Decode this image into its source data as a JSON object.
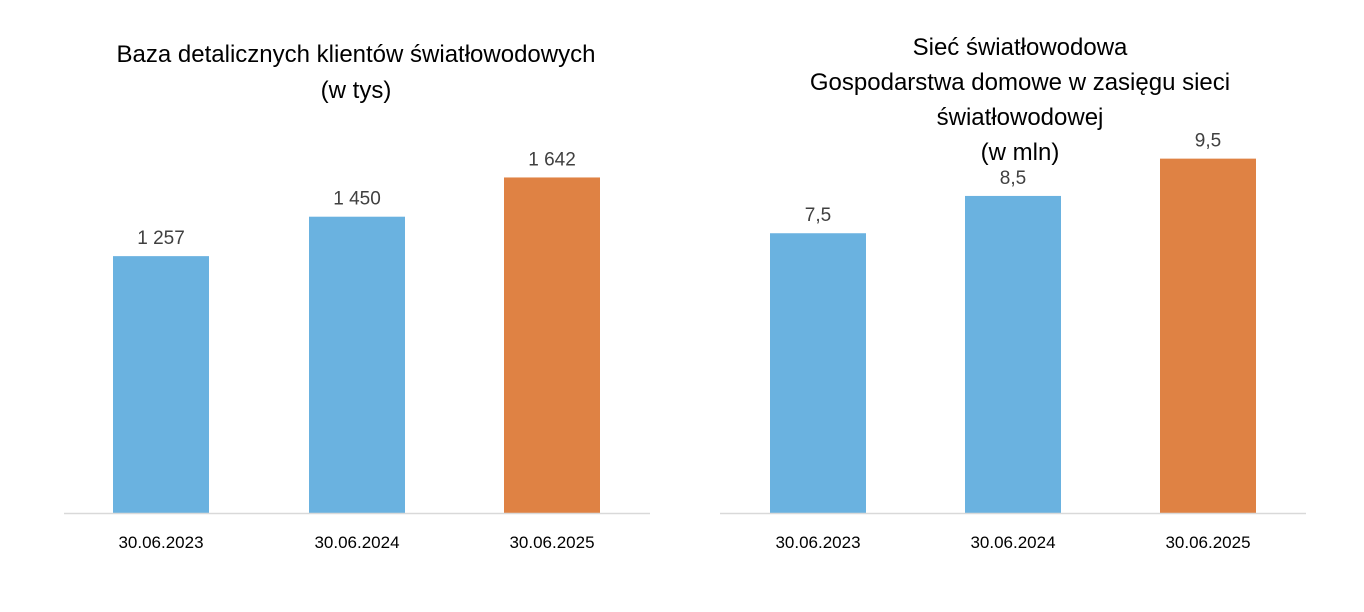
{
  "chart_data": [
    {
      "type": "bar",
      "title_lines": [
        "Baza detalicznych klientów światłowodowych",
        "(w tys)"
      ],
      "categories": [
        "30.06.2023",
        "30.06.2024",
        "30.06.2025"
      ],
      "values": [
        1257,
        1450,
        1642
      ],
      "value_labels": [
        "1 257",
        "1 450",
        "1 642"
      ],
      "bar_colors": [
        "#6AB2E0",
        "#6AB2E0",
        "#DF8244"
      ],
      "ylim": [
        0,
        2300
      ],
      "grid": false,
      "legend": "none"
    },
    {
      "type": "bar",
      "title_lines": [
        "Sieć światłowodowa",
        "Gospodarstwa domowe w zasięgu sieci",
        "światłowodowej",
        "(w mln)"
      ],
      "categories": [
        "30.06.2023",
        "30.06.2024",
        "30.06.2025"
      ],
      "values": [
        7.5,
        8.5,
        9.5
      ],
      "value_labels": [
        "7,5",
        "8,5",
        "9,5"
      ],
      "bar_colors": [
        "#6AB2E0",
        "#6AB2E0",
        "#DF8244"
      ],
      "ylim": [
        0,
        12.6
      ],
      "grid": false,
      "legend": "none"
    }
  ],
  "colors": {
    "bar_blue": "#6AB2E0",
    "bar_orange": "#DF8244",
    "axis_line": "#D9D9D9"
  }
}
